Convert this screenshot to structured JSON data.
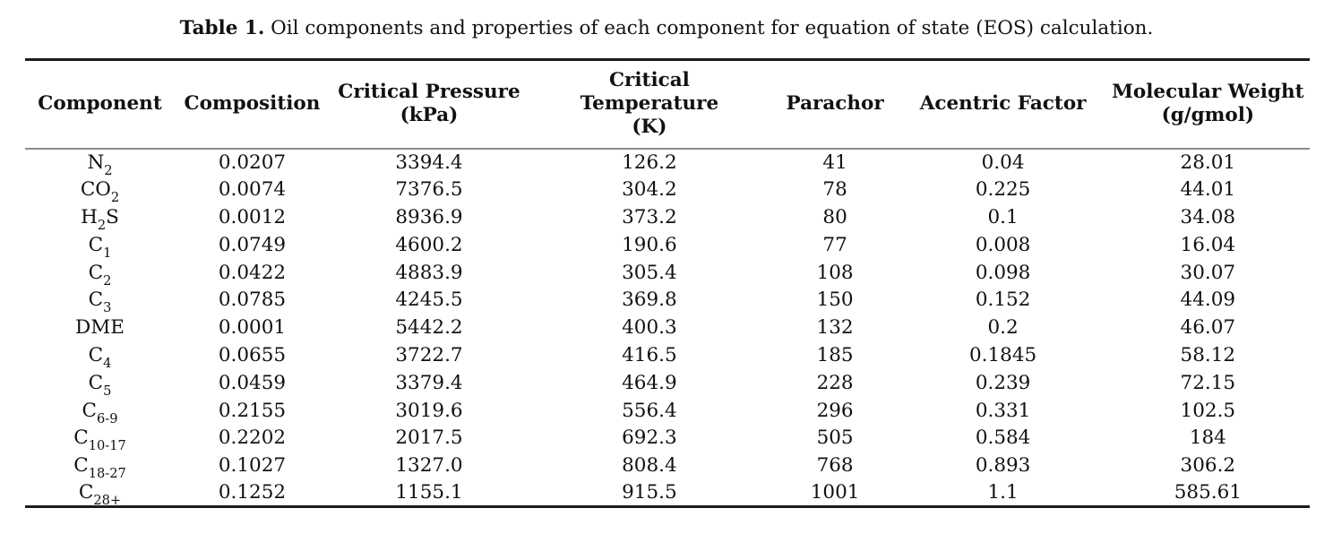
{
  "caption": {
    "label": "Table 1.",
    "text": "Oil components and properties of each component for equation of state (EOS) calculation."
  },
  "table": {
    "columns": [
      {
        "key": "component",
        "label": "Component"
      },
      {
        "key": "composition",
        "label": "Composition"
      },
      {
        "key": "critical_pressure",
        "label": "Critical Pressure\n(kPa)"
      },
      {
        "key": "critical_temperature",
        "label": "Critical\nTemperature\n(K)"
      },
      {
        "key": "parachor",
        "label": "Parachor"
      },
      {
        "key": "acentric_factor",
        "label": "Acentric Factor"
      },
      {
        "key": "molecular_weight",
        "label": "Molecular Weight\n(g/gmol)"
      }
    ],
    "rows": [
      {
        "component": [
          {
            "t": "N"
          },
          {
            "s": "2"
          }
        ],
        "values": [
          "0.0207",
          "3394.4",
          "126.2",
          "41",
          "0.04",
          "28.01"
        ]
      },
      {
        "component": [
          {
            "t": "CO"
          },
          {
            "s": "2"
          }
        ],
        "values": [
          "0.0074",
          "7376.5",
          "304.2",
          "78",
          "0.225",
          "44.01"
        ]
      },
      {
        "component": [
          {
            "t": "H"
          },
          {
            "s": "2"
          },
          {
            "t": "S"
          }
        ],
        "values": [
          "0.0012",
          "8936.9",
          "373.2",
          "80",
          "0.1",
          "34.08"
        ]
      },
      {
        "component": [
          {
            "t": "C"
          },
          {
            "s": "1"
          }
        ],
        "values": [
          "0.0749",
          "4600.2",
          "190.6",
          "77",
          "0.008",
          "16.04"
        ]
      },
      {
        "component": [
          {
            "t": "C"
          },
          {
            "s": "2"
          }
        ],
        "values": [
          "0.0422",
          "4883.9",
          "305.4",
          "108",
          "0.098",
          "30.07"
        ]
      },
      {
        "component": [
          {
            "t": "C"
          },
          {
            "s": "3"
          }
        ],
        "values": [
          "0.0785",
          "4245.5",
          "369.8",
          "150",
          "0.152",
          "44.09"
        ]
      },
      {
        "component": [
          {
            "t": "DME"
          }
        ],
        "values": [
          "0.0001",
          "5442.2",
          "400.3",
          "132",
          "0.2",
          "46.07"
        ]
      },
      {
        "component": [
          {
            "t": "C"
          },
          {
            "s": "4"
          }
        ],
        "values": [
          "0.0655",
          "3722.7",
          "416.5",
          "185",
          "0.1845",
          "58.12"
        ]
      },
      {
        "component": [
          {
            "t": "C"
          },
          {
            "s": "5"
          }
        ],
        "values": [
          "0.0459",
          "3379.4",
          "464.9",
          "228",
          "0.239",
          "72.15"
        ]
      },
      {
        "component": [
          {
            "t": "C"
          },
          {
            "s": "6-9"
          }
        ],
        "values": [
          "0.2155",
          "3019.6",
          "556.4",
          "296",
          "0.331",
          "102.5"
        ]
      },
      {
        "component": [
          {
            "t": "C"
          },
          {
            "s": "10-17"
          }
        ],
        "values": [
          "0.2202",
          "2017.5",
          "692.3",
          "505",
          "0.584",
          "184"
        ]
      },
      {
        "component": [
          {
            "t": "C"
          },
          {
            "s": "18-27"
          }
        ],
        "values": [
          "0.1027",
          "1327.0",
          "808.4",
          "768",
          "0.893",
          "306.2"
        ]
      },
      {
        "component": [
          {
            "t": "C"
          },
          {
            "s": "28+"
          }
        ],
        "values": [
          "0.1252",
          "1155.1",
          "915.5",
          "1001",
          "1.1",
          "585.61"
        ]
      }
    ]
  },
  "colors": {
    "text": "#111111",
    "rule_heavy": "#1c1c1c",
    "rule_light": "#8c8c8c",
    "background": "#ffffff"
  }
}
